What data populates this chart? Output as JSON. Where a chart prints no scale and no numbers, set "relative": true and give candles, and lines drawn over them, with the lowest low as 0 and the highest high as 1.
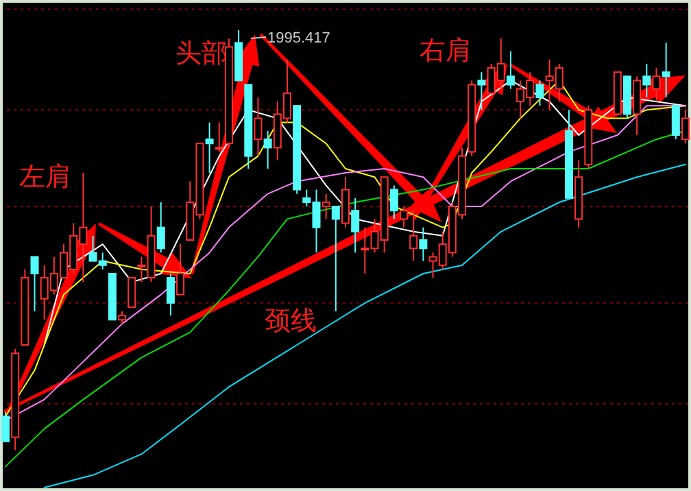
{
  "chart_data": {
    "type": "candlestick",
    "relative": true,
    "ref_lines": [
      {
        "axis": "y",
        "value": 1.05,
        "color": "#8a0000",
        "line_style": "dotted"
      },
      {
        "axis": "y",
        "value": 0.81,
        "color": "#8a0000",
        "line_style": "dotted"
      },
      {
        "axis": "y",
        "value": 0.58,
        "color": "#8a0000",
        "line_style": "dotted"
      },
      {
        "axis": "y",
        "value": 0.35,
        "color": "#8a0000",
        "line_style": "dotted"
      },
      {
        "axis": "y",
        "value": 0.11,
        "color": "#8a0000",
        "line_style": "dotted"
      }
    ],
    "categories": [
      null,
      null,
      null,
      null,
      null,
      null,
      null,
      null,
      null,
      null,
      null,
      null,
      null,
      null,
      null,
      null,
      null,
      null,
      null,
      null,
      null,
      null,
      null,
      null,
      null,
      null,
      null,
      null,
      null,
      null,
      null,
      null,
      null,
      null,
      null,
      null,
      null,
      null,
      null,
      null,
      null,
      null,
      null,
      null,
      null,
      null,
      null,
      null,
      null,
      null,
      null,
      null,
      null,
      null,
      null,
      null,
      null,
      null,
      null,
      null,
      null,
      null,
      null,
      null,
      null,
      null,
      null,
      null,
      null,
      null,
      null
    ],
    "ohlc": [
      [
        0.08,
        0.09,
        0.02,
        0.02
      ],
      [
        0.03,
        0.24,
        0,
        0.23
      ],
      [
        0.25,
        0.43,
        0.25,
        0.41
      ],
      [
        0.46,
        0.46,
        0.33,
        0.42
      ],
      [
        0.36,
        0.44,
        0.31,
        0.41
      ],
      [
        0.38,
        0.46,
        0.37,
        0.42
      ],
      [
        0.41,
        0.49,
        0.41,
        0.47
      ],
      [
        0.43,
        0.54,
        0.42,
        0.51
      ],
      [
        0.49,
        0.66,
        0.4,
        0.53
      ],
      [
        0.47,
        0.51,
        0.45,
        0.45
      ],
      [
        0.45,
        0.47,
        0.43,
        0.44
      ],
      [
        0.42,
        0.42,
        0.31,
        0.31
      ],
      [
        0.31,
        0.33,
        0.3,
        0.32
      ],
      [
        0.34,
        0.41,
        0.34,
        0.41
      ],
      [
        0.44,
        0.46,
        0.4,
        0.44
      ],
      [
        0.41,
        0.58,
        0.4,
        0.51
      ],
      [
        0.53,
        0.59,
        0.47,
        0.48
      ],
      [
        0.41,
        0.42,
        0.32,
        0.35
      ],
      [
        0.37,
        0.49,
        0.37,
        0.42
      ],
      [
        0.5,
        0.64,
        0.5,
        0.59
      ],
      [
        0.56,
        0.73,
        0.55,
        0.73
      ],
      [
        0.74,
        0.78,
        0.66,
        0.73
      ],
      [
        0.72,
        0.78,
        0.71,
        0.72
      ],
      [
        0.73,
        0.98,
        0.72,
        0.96
      ],
      [
        0.97,
        1,
        0.88,
        0.88
      ],
      [
        0.87,
        0.87,
        0.67,
        0.7
      ],
      [
        0.74,
        0.84,
        0.7,
        0.79
      ],
      [
        0.74,
        0.76,
        0.67,
        0.72
      ],
      [
        0.72,
        0.83,
        0.69,
        0.8
      ],
      [
        0.79,
        0.93,
        0.78,
        0.85
      ],
      [
        0.82,
        0.82,
        0.61,
        0.62
      ],
      [
        0.6,
        0.62,
        0.58,
        0.59
      ],
      [
        0.59,
        0.62,
        0.47,
        0.53
      ],
      [
        0.58,
        0.61,
        0.55,
        0.59
      ],
      [
        0.58,
        0.58,
        0.33,
        0.55
      ],
      [
        0.54,
        0.65,
        0.53,
        0.62
      ],
      [
        0.57,
        0.6,
        0.47,
        0.52
      ],
      [
        0.48,
        0.53,
        0.42,
        0.48
      ],
      [
        0.48,
        0.55,
        0.47,
        0.52
      ],
      [
        0.5,
        0.65,
        0.47,
        0.65
      ],
      [
        0.62,
        0.63,
        0.55,
        0.57
      ],
      [
        0.55,
        0.58,
        0.53,
        0.57
      ],
      [
        0.48,
        0.57,
        0.45,
        0.51
      ],
      [
        0.5,
        0.53,
        0.45,
        0.48
      ],
      [
        0.45,
        0.47,
        0.41,
        0.46
      ],
      [
        0.44,
        0.52,
        0.43,
        0.49
      ],
      [
        0.47,
        0.59,
        0.46,
        0.58
      ],
      [
        0.56,
        0.72,
        0.55,
        0.7
      ],
      [
        0.71,
        0.88,
        0.7,
        0.87
      ],
      [
        0.88,
        0.9,
        0.81,
        0.87
      ],
      [
        0.85,
        0.92,
        0.85,
        0.91
      ],
      [
        0.88,
        0.98,
        0.86,
        0.92
      ],
      [
        0.89,
        0.95,
        0.86,
        0.87
      ],
      [
        0.83,
        0.88,
        0.79,
        0.86
      ],
      [
        0.84,
        0.9,
        0.82,
        0.88
      ],
      [
        0.87,
        0.88,
        0.82,
        0.84
      ],
      [
        0.88,
        0.93,
        0.81,
        0.89
      ],
      [
        0.86,
        0.92,
        0.83,
        0.91
      ],
      [
        0.76,
        0.81,
        0.6,
        0.6
      ],
      [
        0.55,
        0.69,
        0.53,
        0.65
      ],
      [
        0.68,
        0.82,
        0.67,
        0.81
      ],
      null,
      null,
      [
        0.8,
        0.9,
        0.8,
        0.9
      ],
      [
        0.89,
        0.89,
        0.79,
        0.8
      ],
      [
        0.8,
        0.89,
        0.75,
        0.88
      ],
      [
        0.89,
        0.92,
        0.84,
        0.87
      ],
      [
        0.86,
        0.91,
        0.83,
        0.89
      ],
      [
        0.9,
        0.97,
        0.84,
        0.89
      ],
      [
        0.82,
        0.82,
        0.74,
        0.75
      ],
      [
        0.74,
        0.81,
        0.73,
        0.79
      ]
    ],
    "series": [
      {
        "type": "line",
        "color": "#ffffff",
        "values": [
          null,
          null,
          null,
          null,
          0.25,
          null,
          0.43,
          null,
          null,
          null,
          0.49,
          null,
          null,
          0.4,
          null,
          null,
          0.42,
          null,
          null,
          null,
          null,
          null,
          0.7,
          null,
          null,
          0.81,
          null,
          null,
          0.79,
          null,
          null,
          null,
          null,
          0.63,
          null,
          null,
          0.55,
          null,
          null,
          null,
          null,
          null,
          0.52,
          null,
          null,
          0.51,
          null,
          null,
          null,
          0.83,
          null,
          null,
          0.88,
          null,
          null,
          null,
          0.83,
          null,
          null,
          0.75,
          null,
          null,
          null,
          null,
          0.84,
          null,
          null,
          null,
          null,
          null,
          0.82
        ]
      },
      {
        "type": "line",
        "color": "#ffff00",
        "values": [
          0.08,
          null,
          null,
          0.19,
          null,
          null,
          0.37,
          null,
          null,
          null,
          0.45,
          null,
          null,
          null,
          0.43,
          null,
          null,
          null,
          null,
          0.42,
          null,
          0.53,
          null,
          0.65,
          null,
          null,
          0.7,
          null,
          0.78,
          null,
          0.78,
          null,
          null,
          0.73,
          null,
          0.67,
          null,
          null,
          0.65,
          null,
          0.58,
          null,
          0.56,
          null,
          null,
          0.53,
          0.54,
          null,
          0.66,
          null,
          0.71,
          null,
          null,
          0.79,
          null,
          null,
          null,
          0.88,
          null,
          0.81,
          null,
          null,
          0.79,
          null,
          0.79,
          null,
          0.81,
          null,
          null,
          null,
          0.82
        ]
      },
      {
        "type": "line",
        "color": "#ff80ff",
        "values": [
          0.07,
          null,
          null,
          null,
          0.12,
          null,
          null,
          null,
          0.21,
          null,
          null,
          null,
          0.3,
          null,
          null,
          null,
          0.37,
          null,
          null,
          null,
          null,
          0.47,
          null,
          0.53,
          null,
          null,
          null,
          0.61,
          null,
          null,
          0.64,
          null,
          null,
          null,
          null,
          0.66,
          null,
          null,
          null,
          0.67,
          null,
          null,
          null,
          0.65,
          null,
          null,
          0.58,
          null,
          null,
          0.58,
          null,
          null,
          0.64,
          null,
          null,
          null,
          null,
          null,
          0.71,
          null,
          null,
          null,
          null,
          0.75,
          null,
          null,
          0.82,
          null,
          null,
          null,
          0.82
        ]
      },
      {
        "type": "line",
        "color": "#00e000",
        "values": [
          -0.04,
          null,
          null,
          null,
          0.05,
          null,
          null,
          null,
          0.12,
          null,
          null,
          null,
          null,
          null,
          0.22,
          null,
          null,
          null,
          null,
          0.28,
          null,
          null,
          null,
          0.38,
          null,
          null,
          0.46,
          null,
          null,
          0.55,
          null,
          null,
          null,
          null,
          null,
          null,
          0.59,
          null,
          null,
          null,
          null,
          null,
          null,
          0.62,
          null,
          null,
          null,
          null,
          null,
          null,
          null,
          null,
          0.67,
          null,
          null,
          null,
          null,
          null,
          null,
          null,
          0.67,
          null,
          null,
          null,
          null,
          null,
          null,
          0.74,
          null,
          null,
          0.76
        ]
      },
      {
        "type": "line",
        "color": "#00e0ff",
        "values": [
          null,
          null,
          null,
          null,
          -0.09,
          null,
          null,
          null,
          null,
          -0.06,
          null,
          null,
          null,
          null,
          -0.01,
          null,
          null,
          null,
          0.06,
          null,
          null,
          null,
          null,
          0.15,
          null,
          null,
          null,
          null,
          null,
          null,
          0.25,
          null,
          null,
          null,
          null,
          null,
          null,
          0.35,
          null,
          null,
          null,
          null,
          null,
          0.42,
          null,
          null,
          null,
          0.44,
          null,
          null,
          null,
          0.52,
          null,
          null,
          null,
          null,
          null,
          0.59,
          null,
          null,
          null,
          null,
          null,
          null,
          null,
          0.65,
          null,
          null,
          null,
          null,
          0.68
        ]
      }
    ],
    "annotations": [
      "左肩",
      "头部",
      "1995.417",
      "右肩",
      "颈线"
    ]
  }
}
